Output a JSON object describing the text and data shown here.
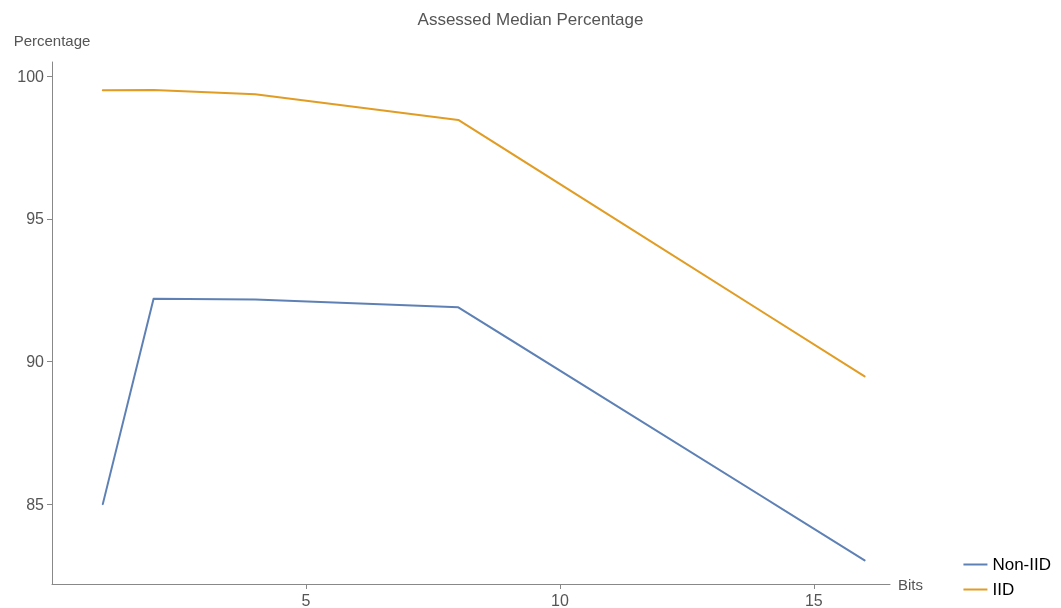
{
  "chart_data": {
    "type": "line",
    "title": "Assessed Median Percentage",
    "xlabel": "Bits",
    "ylabel": "Percentage",
    "x": [
      1,
      2,
      4,
      8,
      16
    ],
    "series": [
      {
        "name": "Non-IID",
        "color": "#5e81b5",
        "values": [
          85.0,
          92.2,
          92.17,
          91.9,
          83.03
        ]
      },
      {
        "name": "IID",
        "color": "#e19c24",
        "values": [
          99.51,
          99.52,
          99.37,
          98.47,
          89.48
        ]
      }
    ],
    "xlim": [
      0,
      16.5
    ],
    "xticks": [
      5,
      10,
      15
    ],
    "ylim": [
      82.2,
      100.5
    ],
    "yticks": [
      85,
      90,
      95,
      100
    ],
    "grid": false,
    "legend": "bottom right",
    "marker": "none",
    "line_style": "solid"
  }
}
